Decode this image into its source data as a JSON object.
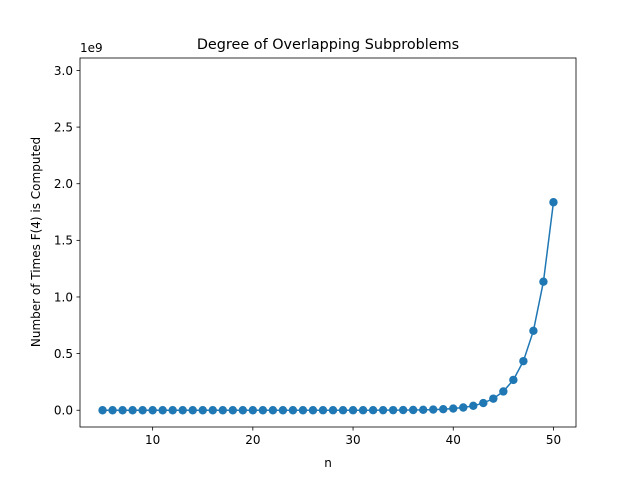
{
  "chart_data": {
    "type": "line",
    "title": "Degree of Overlapping Subproblems",
    "xlabel": "n",
    "ylabel": "Number of Times F(4) is Computed",
    "offset_label": "1e9",
    "x_ticks": [
      10,
      20,
      30,
      40,
      50
    ],
    "y_ticks": [
      0.0,
      0.5,
      1.0,
      1.5,
      2.0,
      2.5,
      3.0
    ],
    "y_tick_labels": [
      "0.0",
      "0.5",
      "1.0",
      "1.5",
      "2.0",
      "2.5",
      "3.0"
    ],
    "xlim": [
      2.75,
      52.25
    ],
    "ylim": [
      -0.148,
      3.11
    ],
    "y_unit_multiplier": 1000000000,
    "color": "#1f77b4",
    "marker": "circle",
    "grid": false,
    "legend": "none",
    "x": [
      5,
      6,
      7,
      8,
      9,
      10,
      11,
      12,
      13,
      14,
      15,
      16,
      17,
      18,
      19,
      20,
      21,
      22,
      23,
      24,
      25,
      26,
      27,
      28,
      29,
      30,
      31,
      32,
      33,
      34,
      35,
      36,
      37,
      38,
      39,
      40,
      41,
      42,
      43,
      44,
      45,
      46,
      47,
      48,
      49,
      50
    ],
    "values": [
      1,
      1,
      2,
      3,
      5,
      8,
      13,
      21,
      34,
      55,
      89,
      144,
      233,
      377,
      610,
      987,
      1597,
      2584,
      4181,
      6765,
      10946,
      17711,
      28657,
      46368,
      75025,
      121393,
      196418,
      317811,
      514229,
      832040,
      1346269,
      2178309,
      3524578,
      5702887,
      9227465,
      14930352,
      24157817,
      39088169,
      63245986,
      102334155,
      165580141,
      267914296,
      433494437,
      701408733,
      1134903170,
      1836311903
    ]
  }
}
